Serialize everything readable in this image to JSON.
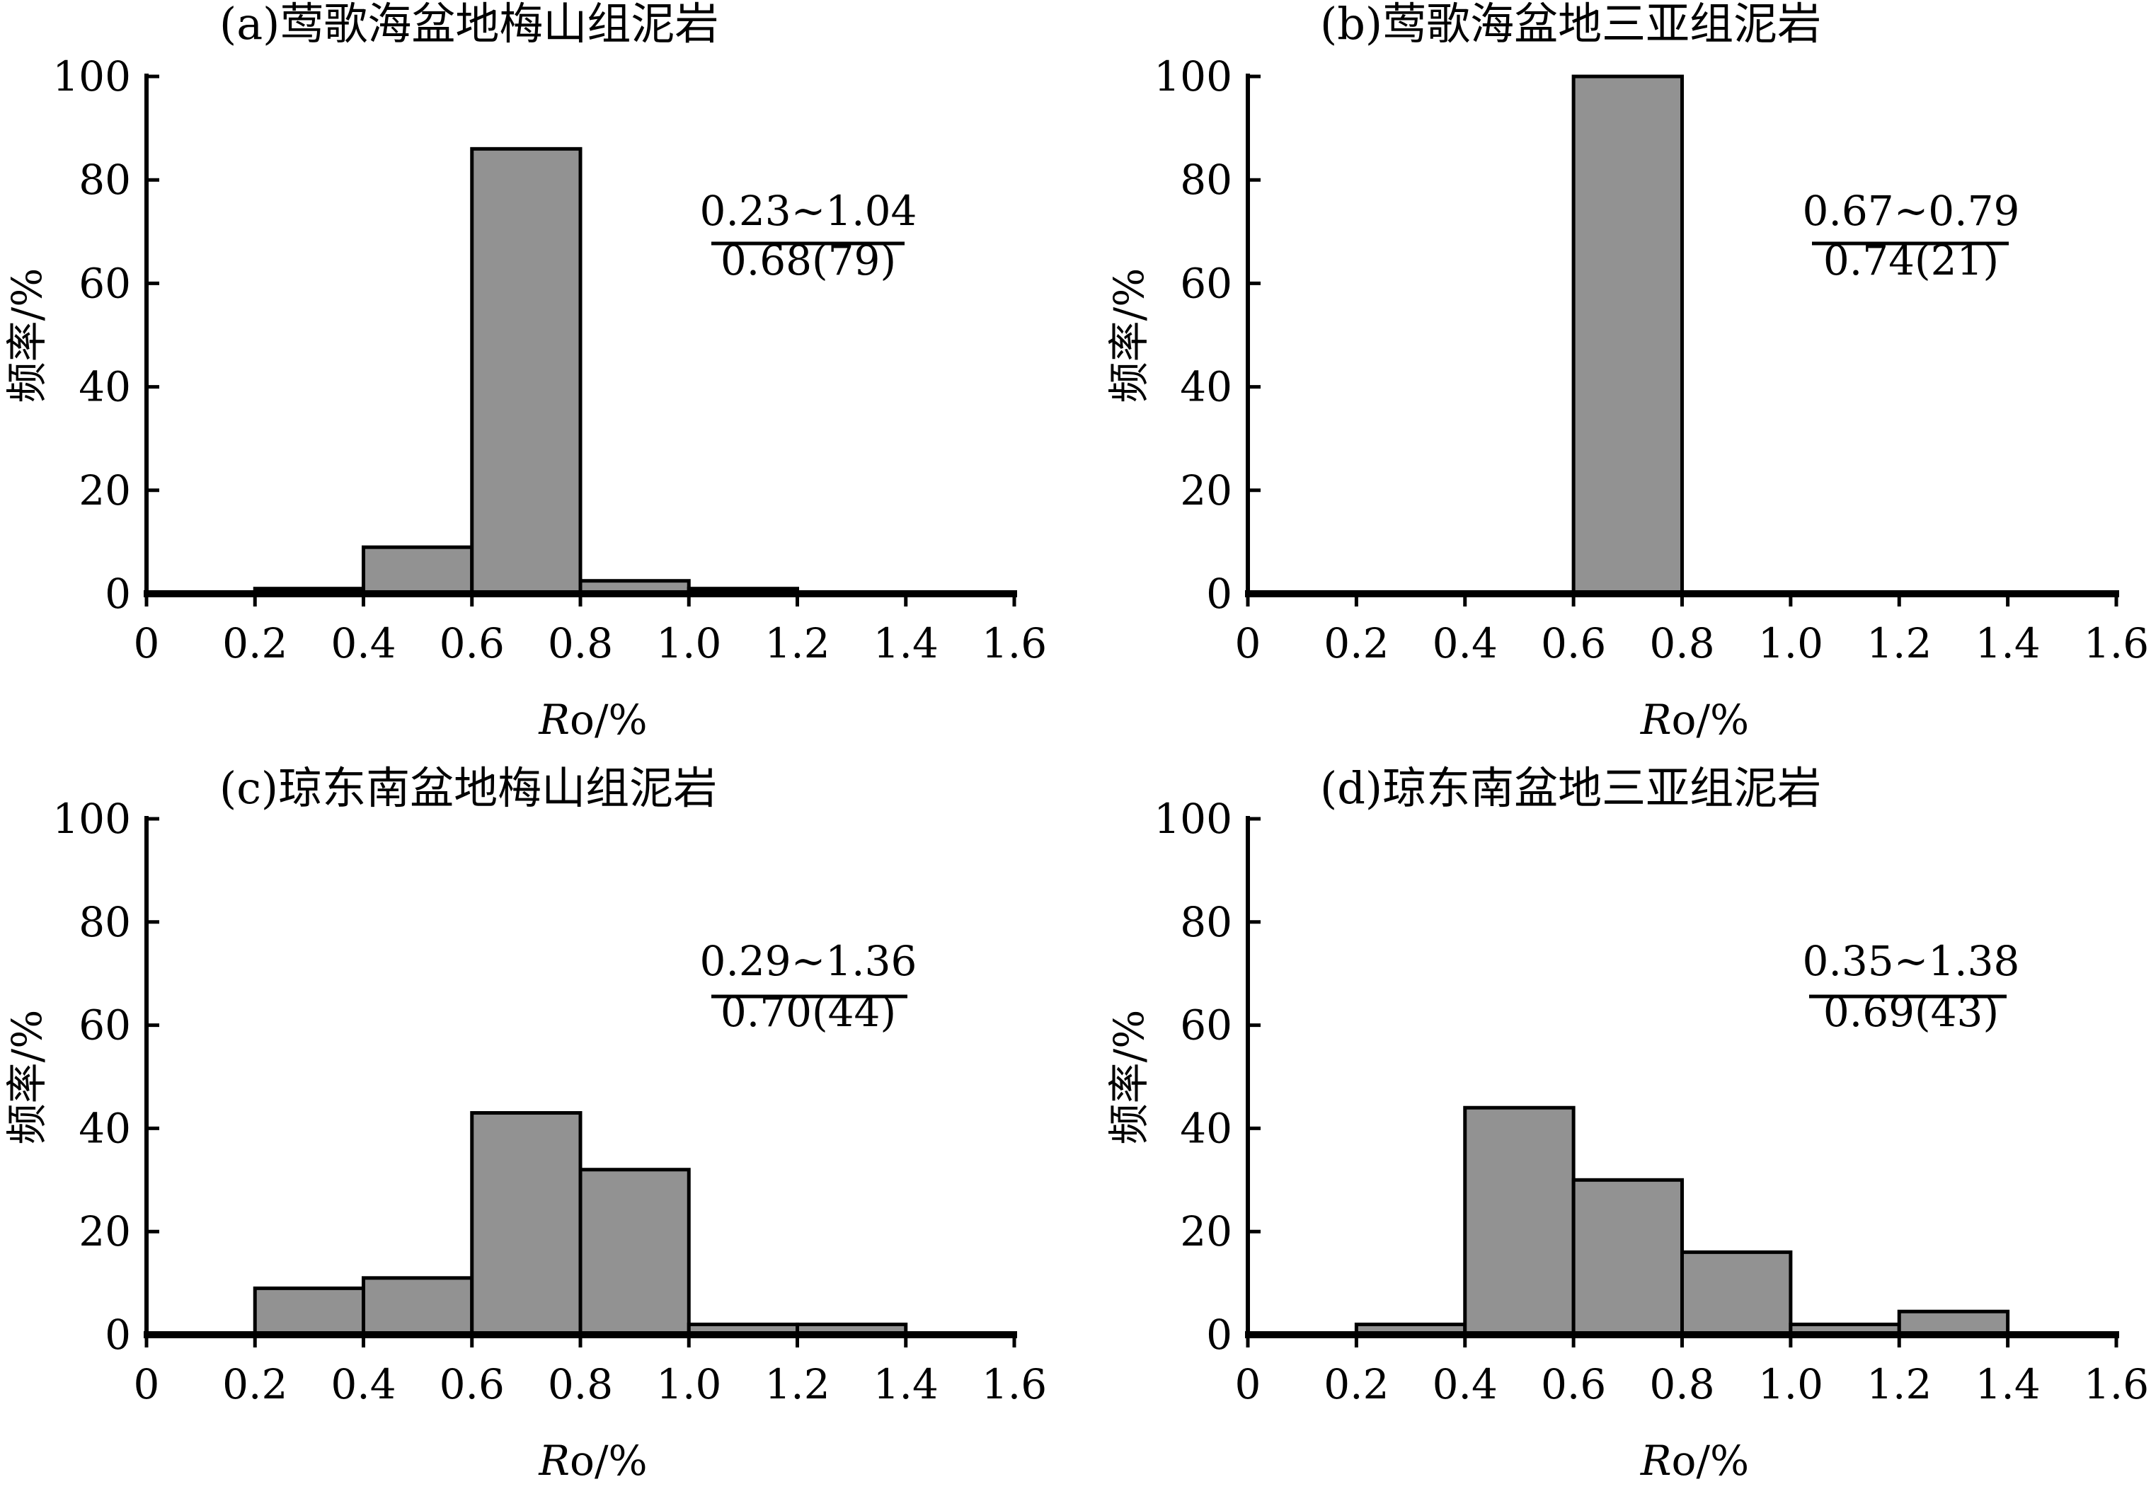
{
  "chart_data": [
    {
      "type": "bar",
      "title": "(a)莺歌海盆地梅山组泥岩",
      "xlabel_main": "R",
      "xlabel_sub": "o",
      "xlabel_unit": "/%",
      "ylabel": "频率/%",
      "ylim": [
        0,
        100
      ],
      "xlim": [
        0,
        1.6
      ],
      "x_ticks": [
        "0",
        "0.2",
        "0.4",
        "0.6",
        "0.8",
        "1.0",
        "1.2",
        "1.4",
        "1.6"
      ],
      "y_ticks": [
        "0",
        "20",
        "40",
        "60",
        "80",
        "100"
      ],
      "bins": [
        [
          0.2,
          0.4
        ],
        [
          0.4,
          0.6
        ],
        [
          0.6,
          0.8
        ],
        [
          0.8,
          1.0
        ],
        [
          1.0,
          1.2
        ]
      ],
      "values": [
        1,
        9,
        86,
        2.5,
        1
      ],
      "annotation": {
        "range": "0.23~1.04",
        "mean": "0.68(79)"
      },
      "bar_color": "#929292"
    },
    {
      "type": "bar",
      "title": "(b)莺歌海盆地三亚组泥岩",
      "xlabel_main": "R",
      "xlabel_sub": "o",
      "xlabel_unit": "/%",
      "ylabel": "频率/%",
      "ylim": [
        0,
        100
      ],
      "xlim": [
        0,
        1.6
      ],
      "x_ticks": [
        "0",
        "0.2",
        "0.4",
        "0.6",
        "0.8",
        "1.0",
        "1.2",
        "1.4",
        "1.6"
      ],
      "y_ticks": [
        "0",
        "20",
        "40",
        "60",
        "80",
        "100"
      ],
      "bins": [
        [
          0.6,
          0.8
        ]
      ],
      "values": [
        100
      ],
      "annotation": {
        "range": "0.67~0.79",
        "mean": "0.74(21)"
      },
      "bar_color": "#929292"
    },
    {
      "type": "bar",
      "title": "(c)琼东南盆地梅山组泥岩",
      "xlabel_main": "R",
      "xlabel_sub": "o",
      "xlabel_unit": "/%",
      "ylabel": "频率/%",
      "ylim": [
        0,
        100
      ],
      "xlim": [
        0,
        1.6
      ],
      "x_ticks": [
        "0",
        "0.2",
        "0.4",
        "0.6",
        "0.8",
        "1.0",
        "1.2",
        "1.4",
        "1.6"
      ],
      "y_ticks": [
        "0",
        "20",
        "40",
        "60",
        "80",
        "100"
      ],
      "bins": [
        [
          0.2,
          0.4
        ],
        [
          0.4,
          0.6
        ],
        [
          0.6,
          0.8
        ],
        [
          0.8,
          1.0
        ],
        [
          1.0,
          1.2
        ],
        [
          1.2,
          1.4
        ]
      ],
      "values": [
        9,
        11,
        43,
        32,
        2,
        2
      ],
      "annotation": {
        "range": "0.29~1.36",
        "mean": "0.70(44)"
      },
      "bar_color": "#929292"
    },
    {
      "type": "bar",
      "title": "(d)琼东南盆地三亚组泥岩",
      "xlabel_main": "R",
      "xlabel_sub": "o",
      "xlabel_unit": "/%",
      "ylabel": "频率/%",
      "ylim": [
        0,
        100
      ],
      "xlim": [
        0,
        1.6
      ],
      "x_ticks": [
        "0",
        "0.2",
        "0.4",
        "0.6",
        "0.8",
        "1.0",
        "1.2",
        "1.4",
        "1.6"
      ],
      "y_ticks": [
        "0",
        "20",
        "40",
        "60",
        "80",
        "100"
      ],
      "bins": [
        [
          0.2,
          0.4
        ],
        [
          0.4,
          0.6
        ],
        [
          0.6,
          0.8
        ],
        [
          0.8,
          1.0
        ],
        [
          1.0,
          1.2
        ],
        [
          1.2,
          1.4
        ]
      ],
      "values": [
        2,
        44,
        30,
        16,
        2,
        4.5
      ],
      "annotation": {
        "range": "0.35~1.38",
        "mean": "0.69(43)"
      },
      "bar_color": "#929292"
    }
  ]
}
